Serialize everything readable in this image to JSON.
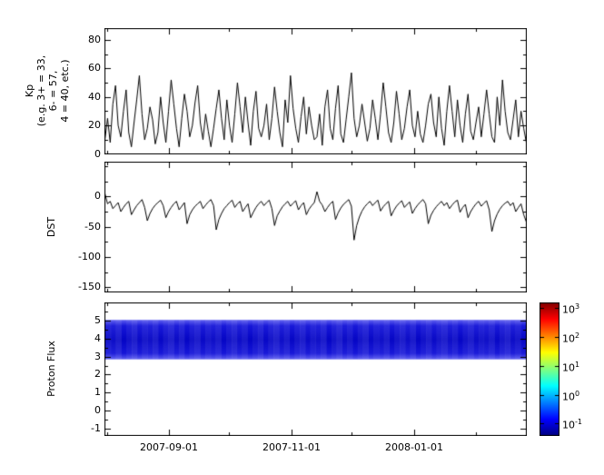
{
  "figure": {
    "background": "#ffffff",
    "frame_color": "#000000",
    "line_color": "#000000"
  },
  "xaxis": {
    "tick_labels": [
      "2007-09-01",
      "2007-11-01",
      "2008-01-01"
    ],
    "major_days": [
      32,
      93,
      154
    ],
    "minor_days": [
      1,
      62,
      123,
      185
    ],
    "domain_days": [
      0,
      210
    ]
  },
  "chart_data": [
    {
      "type": "line",
      "panel": "kp",
      "ylabel_lines": [
        "Kp",
        "(e.g. 3+ = 33,",
        "6- = 57,",
        "4 = 40, etc.)"
      ],
      "ylim": [
        0,
        88
      ],
      "yticks": [
        0,
        20,
        40,
        60,
        80
      ],
      "yminors": [
        10,
        30,
        50,
        70
      ],
      "grid": false,
      "values": [
        10,
        25,
        8,
        35,
        48,
        20,
        12,
        30,
        45,
        15,
        5,
        22,
        38,
        55,
        28,
        10,
        18,
        33,
        24,
        7,
        15,
        40,
        22,
        8,
        30,
        52,
        35,
        18,
        5,
        25,
        42,
        30,
        12,
        20,
        36,
        48,
        22,
        10,
        28,
        16,
        5,
        18,
        32,
        45,
        25,
        10,
        38,
        20,
        8,
        28,
        50,
        33,
        15,
        40,
        22,
        6,
        30,
        44,
        18,
        12,
        20,
        35,
        10,
        25,
        47,
        30,
        15,
        5,
        38,
        22,
        55,
        32,
        18,
        8,
        26,
        40,
        14,
        33,
        20,
        10,
        12,
        28,
        6,
        33,
        45,
        18,
        10,
        32,
        48,
        14,
        8,
        24,
        40,
        57,
        25,
        12,
        20,
        35,
        22,
        9,
        18,
        38,
        25,
        10,
        28,
        50,
        33,
        15,
        8,
        22,
        44,
        28,
        10,
        18,
        33,
        45,
        20,
        12,
        30,
        14,
        8,
        20,
        35,
        42,
        22,
        12,
        40,
        18,
        6,
        30,
        48,
        30,
        12,
        38,
        20,
        8,
        28,
        42,
        16,
        10,
        22,
        33,
        12,
        28,
        45,
        28,
        12,
        8,
        40,
        20,
        52,
        30,
        15,
        10,
        24,
        38,
        12,
        30,
        18,
        8
      ]
    },
    {
      "type": "line",
      "panel": "dst",
      "ylabel": "DST",
      "ylim": [
        -158,
        57
      ],
      "yticks": [
        0,
        -50,
        -100,
        -150
      ],
      "yminors": [
        50,
        25,
        -25,
        -75,
        -125
      ],
      "grid": false,
      "values": [
        5,
        -12,
        -8,
        -20,
        -15,
        -10,
        -25,
        -18,
        -12,
        -8,
        -30,
        -22,
        -15,
        -10,
        -5,
        -18,
        -40,
        -28,
        -20,
        -14,
        -10,
        -6,
        -15,
        -35,
        -25,
        -18,
        -12,
        -8,
        -22,
        -16,
        -10,
        -45,
        -30,
        -22,
        -16,
        -12,
        -8,
        -20,
        -14,
        -9,
        -5,
        -15,
        -55,
        -38,
        -28,
        -20,
        -15,
        -10,
        -6,
        -18,
        -12,
        -8,
        -25,
        -18,
        -12,
        -35,
        -26,
        -18,
        -12,
        -8,
        -15,
        -10,
        -6,
        -20,
        -48,
        -32,
        -24,
        -17,
        -12,
        -8,
        -16,
        -11,
        -7,
        -22,
        -15,
        -10,
        -30,
        -21,
        -15,
        -10,
        8,
        -8,
        -14,
        -25,
        -18,
        -12,
        -8,
        -38,
        -27,
        -19,
        -13,
        -9,
        -5,
        -16,
        -72,
        -48,
        -34,
        -24,
        -17,
        -12,
        -8,
        -15,
        -10,
        -6,
        -24,
        -17,
        -12,
        -8,
        -32,
        -23,
        -16,
        -11,
        -7,
        -18,
        -13,
        -9,
        -28,
        -20,
        -14,
        -9,
        -5,
        -12,
        -45,
        -31,
        -23,
        -17,
        -12,
        -8,
        -15,
        -10,
        -20,
        -14,
        -9,
        -6,
        -26,
        -18,
        -13,
        -35,
        -25,
        -18,
        -12,
        -8,
        -16,
        -11,
        -7,
        -22,
        -58,
        -40,
        -29,
        -21,
        -15,
        -11,
        -8,
        -15,
        -10,
        -25,
        -18,
        -12,
        -30,
        -42
      ]
    },
    {
      "type": "heatmap",
      "panel": "proton_flux",
      "ylabel": "Proton Flux",
      "ylim": [
        -1.4,
        6.0
      ],
      "yticks": [
        5,
        4,
        3,
        2,
        1,
        0,
        -1
      ],
      "yminors": [
        -0.5,
        0.5,
        1.5,
        2.5,
        3.5,
        4.5,
        5.5
      ],
      "band": {
        "y_from": 2.85,
        "y_to": 5.05,
        "base_color": "#0000c4",
        "edge_color": "#5a5af0"
      },
      "intensity": [
        0.35,
        0.42,
        0.3,
        0.5,
        0.38,
        0.28,
        0.45,
        0.33,
        0.4,
        0.3,
        0.48,
        0.36,
        0.27,
        0.44,
        0.32,
        0.5,
        0.38,
        0.29,
        0.46,
        0.34,
        0.41,
        0.31,
        0.49,
        0.37,
        0.28,
        0.43,
        0.33,
        0.5,
        0.39,
        0.3,
        0.47,
        0.35,
        0.26,
        0.42,
        0.32,
        0.48,
        0.36,
        0.29,
        0.45,
        0.34,
        0.4,
        0.3,
        0.5,
        0.38,
        0.27,
        0.44,
        0.33,
        0.49,
        0.37,
        0.28,
        0.46,
        0.35,
        0.41,
        0.31,
        0.48,
        0.36,
        0.29,
        0.43,
        0.32,
        0.5,
        0.39,
        0.3,
        0.45,
        0.34,
        0.27,
        0.42,
        0.33,
        0.49,
        0.38,
        0.29,
        0.44,
        0.35,
        0.4,
        0.31,
        0.47,
        0.36,
        0.28,
        0.43,
        0.34,
        0.46
      ],
      "colorbar": {
        "scale": "log",
        "log_range": [
          -1.4,
          3.2
        ],
        "ticks": [
          {
            "base": "10",
            "exp": "3"
          },
          {
            "base": "10",
            "exp": "2"
          },
          {
            "base": "10",
            "exp": "1"
          },
          {
            "base": "10",
            "exp": "0"
          },
          {
            "base": "10",
            "exp": "-1"
          }
        ],
        "tick_exponents": [
          3,
          2,
          1,
          0,
          -1
        ],
        "colors": [
          "#00007F",
          "#0000FF",
          "#00FFFF",
          "#FFFF00",
          "#FF0000",
          "#7F0000"
        ],
        "color_stops": [
          0,
          0.125,
          0.375,
          0.625,
          0.875,
          1
        ]
      }
    }
  ]
}
